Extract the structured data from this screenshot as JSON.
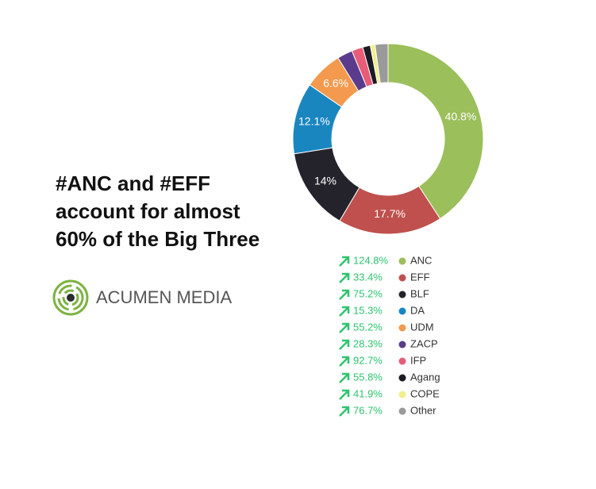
{
  "brand": "ACUMEN MEDIA",
  "chart_data": {
    "type": "pie",
    "donut": true,
    "title": "#ANC and #EFF account for almost 60% of the Big Three",
    "categories": [
      "ANC",
      "EFF",
      "BLF",
      "DA",
      "UDM",
      "ZACP",
      "IFP",
      "Agang",
      "COPE",
      "Other"
    ],
    "values": [
      40.8,
      17.7,
      14,
      12.1,
      6.6,
      2.6,
      1.9,
      1.3,
      0.8,
      2.2
    ],
    "value_labels": [
      "40.8%",
      "17.7%",
      "14%",
      "12.1%",
      "6.6%",
      null,
      null,
      null,
      null,
      null
    ],
    "colors": [
      "#9bbf5a",
      "#c0504d",
      "#24232c",
      "#1a86c0",
      "#f39a4e",
      "#5b3b8c",
      "#e85c78",
      "#1b1b25",
      "#f2ee8c",
      "#9a9a9a"
    ],
    "growth_labels": [
      "124.8%",
      "33.4%",
      "75.2%",
      "15.3%",
      "55.2%",
      "28.3%",
      "92.7%",
      "55.8%",
      "41.9%",
      "76.7%"
    ]
  }
}
